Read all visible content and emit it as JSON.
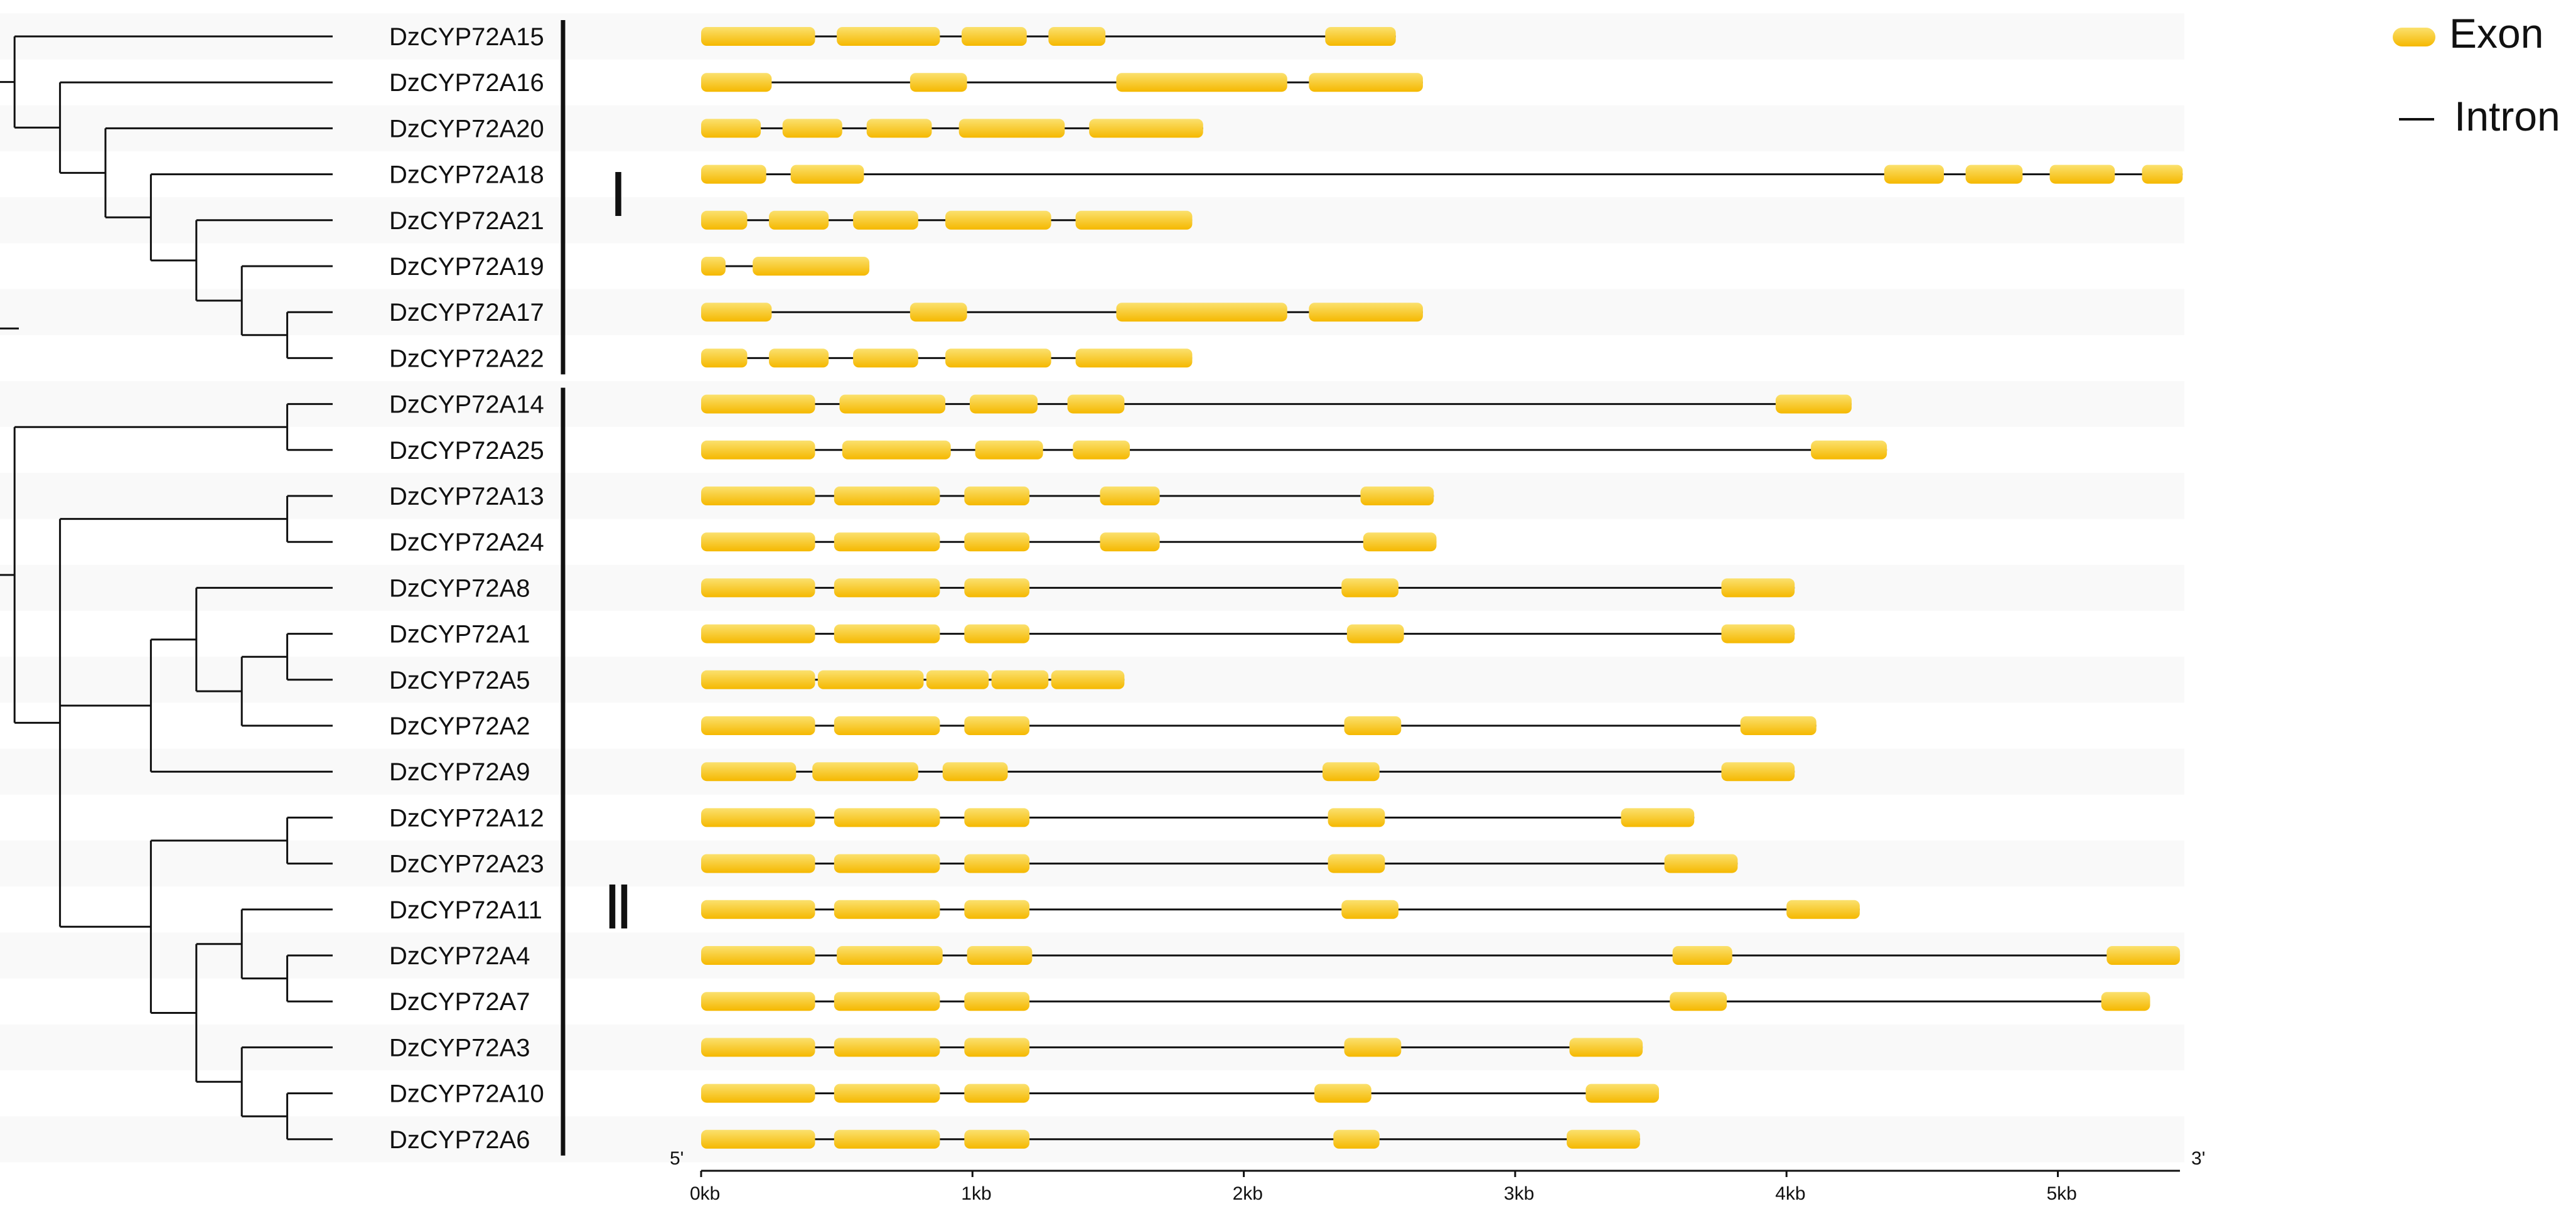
{
  "legend": {
    "exon": "Exon",
    "intron": "Intron"
  },
  "colors": {
    "exon_top": "#fbe16e",
    "exon_bottom": "#f5b800",
    "line": "#111111",
    "stripe": "#eeeeee"
  },
  "axis": {
    "unit": "kb",
    "start_label": "5'",
    "end_label": "3'",
    "ticks": [
      "0kb",
      "1kb",
      "2kb",
      "3kb",
      "4kb",
      "5kb"
    ],
    "max_kb": 5.45
  },
  "clades": [
    {
      "label": "Ⅰ",
      "first_gene": 0,
      "last_gene": 7
    },
    {
      "label": "Ⅱ",
      "first_gene": 8,
      "last_gene": 24
    }
  ],
  "genes": [
    {
      "name": "DzCYP72A15",
      "exons": [
        [
          0,
          0.42
        ],
        [
          0.5,
          0.88
        ],
        [
          0.96,
          1.2
        ],
        [
          1.28,
          1.49
        ],
        [
          2.3,
          2.56
        ]
      ]
    },
    {
      "name": "DzCYP72A16",
      "exons": [
        [
          0,
          0.26
        ],
        [
          0.77,
          0.98
        ],
        [
          1.53,
          2.16
        ],
        [
          2.24,
          2.66
        ]
      ]
    },
    {
      "name": "DzCYP72A20",
      "exons": [
        [
          0,
          0.22
        ],
        [
          0.3,
          0.52
        ],
        [
          0.61,
          0.85
        ],
        [
          0.95,
          1.34
        ],
        [
          1.43,
          1.85
        ]
      ]
    },
    {
      "name": "DzCYP72A18",
      "exons": [
        [
          0,
          0.24
        ],
        [
          0.33,
          0.6
        ],
        [
          4.36,
          4.58
        ],
        [
          4.66,
          4.87
        ],
        [
          4.97,
          5.21
        ],
        [
          5.31,
          5.46
        ]
      ]
    },
    {
      "name": "DzCYP72A21",
      "exons": [
        [
          0,
          0.17
        ],
        [
          0.25,
          0.47
        ],
        [
          0.56,
          0.8
        ],
        [
          0.9,
          1.29
        ],
        [
          1.38,
          1.81
        ]
      ]
    },
    {
      "name": "DzCYP72A19",
      "exons": [
        [
          0,
          0.09
        ],
        [
          0.19,
          0.62
        ]
      ]
    },
    {
      "name": "DzCYP72A17",
      "exons": [
        [
          0,
          0.26
        ],
        [
          0.77,
          0.98
        ],
        [
          1.53,
          2.16
        ],
        [
          2.24,
          2.66
        ]
      ]
    },
    {
      "name": "DzCYP72A22",
      "exons": [
        [
          0,
          0.17
        ],
        [
          0.25,
          0.47
        ],
        [
          0.56,
          0.8
        ],
        [
          0.9,
          1.29
        ],
        [
          1.38,
          1.81
        ]
      ]
    },
    {
      "name": "DzCYP72A14",
      "exons": [
        [
          0,
          0.42
        ],
        [
          0.51,
          0.9
        ],
        [
          0.99,
          1.24
        ],
        [
          1.35,
          1.56
        ],
        [
          3.96,
          4.24
        ]
      ]
    },
    {
      "name": "DzCYP72A25",
      "exons": [
        [
          0,
          0.42
        ],
        [
          0.52,
          0.92
        ],
        [
          1.01,
          1.26
        ],
        [
          1.37,
          1.58
        ],
        [
          4.09,
          4.37
        ]
      ]
    },
    {
      "name": "DzCYP72A13",
      "exons": [
        [
          0,
          0.42
        ],
        [
          0.49,
          0.88
        ],
        [
          0.97,
          1.21
        ],
        [
          1.47,
          1.69
        ],
        [
          2.43,
          2.7
        ]
      ]
    },
    {
      "name": "DzCYP72A24",
      "exons": [
        [
          0,
          0.42
        ],
        [
          0.49,
          0.88
        ],
        [
          0.97,
          1.21
        ],
        [
          1.47,
          1.69
        ],
        [
          2.44,
          2.71
        ]
      ]
    },
    {
      "name": "DzCYP72A8",
      "exons": [
        [
          0,
          0.42
        ],
        [
          0.49,
          0.88
        ],
        [
          0.97,
          1.21
        ],
        [
          2.36,
          2.57
        ],
        [
          3.76,
          4.03
        ]
      ]
    },
    {
      "name": "DzCYP72A1",
      "exons": [
        [
          0,
          0.42
        ],
        [
          0.49,
          0.88
        ],
        [
          0.97,
          1.21
        ],
        [
          2.38,
          2.59
        ],
        [
          3.76,
          4.03
        ]
      ]
    },
    {
      "name": "DzCYP72A5",
      "exons": [
        [
          0,
          0.42
        ],
        [
          0.43,
          0.82
        ],
        [
          0.83,
          1.06
        ],
        [
          1.07,
          1.28
        ],
        [
          1.29,
          1.56
        ]
      ]
    },
    {
      "name": "DzCYP72A2",
      "exons": [
        [
          0,
          0.42
        ],
        [
          0.49,
          0.88
        ],
        [
          0.97,
          1.21
        ],
        [
          2.37,
          2.58
        ],
        [
          3.83,
          4.11
        ]
      ]
    },
    {
      "name": "DzCYP72A9",
      "exons": [
        [
          0,
          0.35
        ],
        [
          0.41,
          0.8
        ],
        [
          0.89,
          1.13
        ],
        [
          2.29,
          2.5
        ],
        [
          3.76,
          4.03
        ]
      ]
    },
    {
      "name": "DzCYP72A12",
      "exons": [
        [
          0,
          0.42
        ],
        [
          0.49,
          0.88
        ],
        [
          0.97,
          1.21
        ],
        [
          2.31,
          2.52
        ],
        [
          3.39,
          3.66
        ]
      ]
    },
    {
      "name": "DzCYP72A23",
      "exons": [
        [
          0,
          0.42
        ],
        [
          0.49,
          0.88
        ],
        [
          0.97,
          1.21
        ],
        [
          2.31,
          2.52
        ],
        [
          3.55,
          3.82
        ]
      ]
    },
    {
      "name": "DzCYP72A11",
      "exons": [
        [
          0,
          0.42
        ],
        [
          0.49,
          0.88
        ],
        [
          0.97,
          1.21
        ],
        [
          2.36,
          2.57
        ],
        [
          4.0,
          4.27
        ]
      ]
    },
    {
      "name": "DzCYP72A4",
      "exons": [
        [
          0,
          0.42
        ],
        [
          0.5,
          0.89
        ],
        [
          0.98,
          1.22
        ],
        [
          3.58,
          3.8
        ],
        [
          5.18,
          5.45
        ]
      ]
    },
    {
      "name": "DzCYP72A7",
      "exons": [
        [
          0,
          0.42
        ],
        [
          0.49,
          0.88
        ],
        [
          0.97,
          1.21
        ],
        [
          3.57,
          3.78
        ],
        [
          5.16,
          5.34
        ]
      ]
    },
    {
      "name": "DzCYP72A3",
      "exons": [
        [
          0,
          0.42
        ],
        [
          0.49,
          0.88
        ],
        [
          0.97,
          1.21
        ],
        [
          2.37,
          2.58
        ],
        [
          3.2,
          3.47
        ]
      ]
    },
    {
      "name": "DzCYP72A10",
      "exons": [
        [
          0,
          0.42
        ],
        [
          0.49,
          0.88
        ],
        [
          0.97,
          1.21
        ],
        [
          2.26,
          2.47
        ],
        [
          3.26,
          3.53
        ]
      ]
    },
    {
      "name": "DzCYP72A6",
      "exons": [
        [
          0,
          0.42
        ],
        [
          0.49,
          0.88
        ],
        [
          0.97,
          1.21
        ],
        [
          2.33,
          2.5
        ],
        [
          3.19,
          3.46
        ]
      ]
    }
  ],
  "tree": {
    "leaf_order": [
      "DzCYP72A15",
      "DzCYP72A16",
      "DzCYP72A20",
      "DzCYP72A18",
      "DzCYP72A21",
      "DzCYP72A19",
      "DzCYP72A17",
      "DzCYP72A22",
      "DzCYP72A14",
      "DzCYP72A25",
      "DzCYP72A13",
      "DzCYP72A24",
      "DzCYP72A8",
      "DzCYP72A1",
      "DzCYP72A5",
      "DzCYP72A2",
      "DzCYP72A9",
      "DzCYP72A12",
      "DzCYP72A23",
      "DzCYP72A11",
      "DzCYP72A4",
      "DzCYP72A7",
      "DzCYP72A3",
      "DzCYP72A10",
      "DzCYP72A6"
    ],
    "newick": "(((DzCYP72A15,(DzCYP72A16,(DzCYP72A20,(DzCYP72A18,(DzCYP72A21,(DzCYP72A19,(DzCYP72A17,DzCYP72A22))))))),((DzCYP72A14,DzCYP72A25),((DzCYP72A13,DzCYP72A24),((DzCYP72A8,((DzCYP72A1,DzCYP72A5),DzCYP72A2)),DzCYP72A9),(((DzCYP72A12,DzCYP72A23),((DzCYP72A11,(DzCYP72A4,DzCYP72A7)),(DzCYP72A3,(DzCYP72A10,DzCYP72A6))))))))))"
  }
}
